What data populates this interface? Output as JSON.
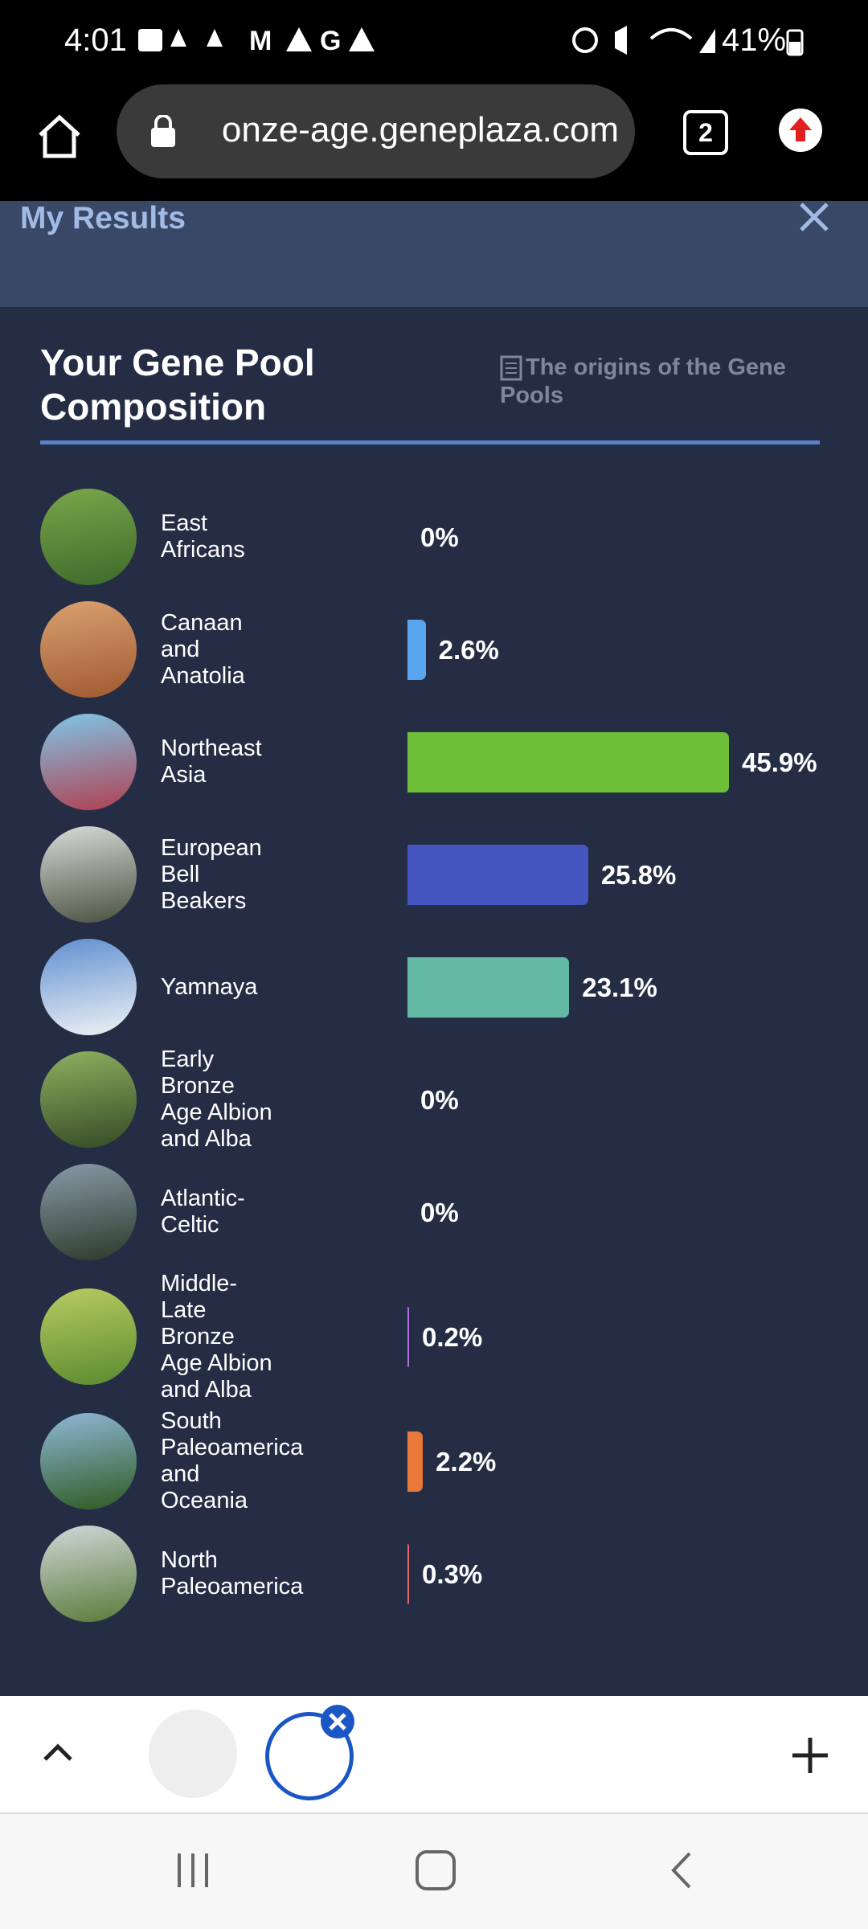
{
  "status_bar": {
    "time": "4:01",
    "battery": "41%"
  },
  "browser": {
    "url": "onze-age.geneplaza.com",
    "tab_count": "2"
  },
  "header": {
    "title": "My Results"
  },
  "panel": {
    "link": "The origins of the Gene Pools"
  },
  "chart_data": {
    "type": "bar",
    "orientation": "horizontal",
    "title": "Your Gene Pool Composition",
    "categories": [
      "East Africans",
      "Canaan and Anatolia",
      "Northeast Asia",
      "European Bell Beakers",
      "Yamnaya",
      "Early Bronze Age Albion and Alba",
      "Atlantic-Celtic",
      "Middle-Late Bronze Age Albion and Alba",
      "South Paleoamerica and Oceania",
      "North Paleoamerica"
    ],
    "values": [
      0,
      2.6,
      45.9,
      25.8,
      23.1,
      0,
      0,
      0.2,
      2.2,
      0.3
    ],
    "value_labels": [
      "0%",
      "2.6%",
      "45.9%",
      "25.8%",
      "23.1%",
      "0%",
      "0%",
      "0.2%",
      "2.2%",
      "0.3%"
    ],
    "colors": [
      null,
      "#5aa5f0",
      "#6cbf37",
      "#4556c0",
      "#63b9a4",
      null,
      null,
      "#b070e0",
      "#e8793a",
      "#e06868"
    ]
  }
}
